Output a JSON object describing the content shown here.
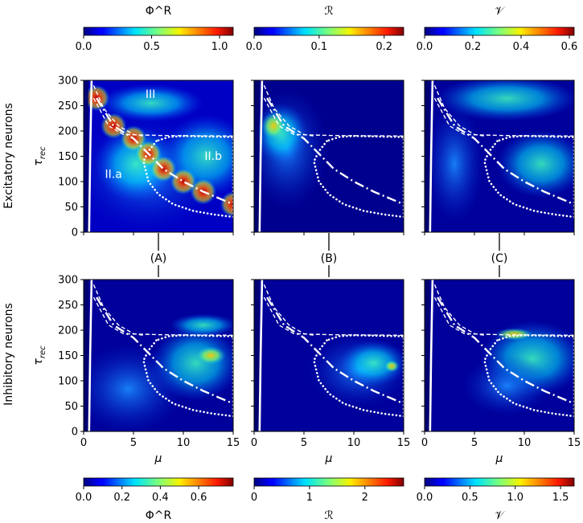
{
  "chart_data": {
    "type": "heatmap",
    "layout": "2 rows x 3 columns of heatmaps with horizontal colorbars above the top row and below the bottom row",
    "row_labels": [
      "Excitatory neurons",
      "Inhibitory neurons"
    ],
    "column_markers": [
      "(A)",
      "(B)",
      "(C)"
    ],
    "xlabel": "μ",
    "ylabel": "τ_rec",
    "xlim": [
      0,
      15
    ],
    "ylim": [
      0,
      300
    ],
    "xticks": [
      0,
      5,
      10,
      15
    ],
    "yticks": [
      0,
      50,
      100,
      150,
      200,
      250,
      300
    ],
    "colormap": "jet",
    "top_colorbars": [
      {
        "label": "Φ^R",
        "range": [
          0,
          1.1
        ],
        "ticks": [
          0.0,
          0.5,
          1.0
        ],
        "tick_labels": [
          "0.0",
          "0.5",
          "1.0"
        ]
      },
      {
        "label": "ℛ",
        "range": [
          0,
          0.23
        ],
        "ticks": [
          0,
          0.1,
          0.2
        ],
        "tick_labels": [
          "0.0",
          "0.1",
          "0.2"
        ]
      },
      {
        "label": "𝒱",
        "range": [
          0,
          0.62
        ],
        "ticks": [
          0,
          0.2,
          0.4,
          0.6
        ],
        "tick_labels": [
          "0.0",
          "0.2",
          "0.4",
          "0.6"
        ]
      }
    ],
    "bottom_colorbars": [
      {
        "label": "Φ^R",
        "range": [
          0,
          0.78
        ],
        "ticks": [
          0,
          0.2,
          0.4,
          0.6
        ],
        "tick_labels": [
          "0.0",
          "0.2",
          "0.4",
          "0.6"
        ]
      },
      {
        "label": "ℛ",
        "range": [
          0,
          2.7
        ],
        "ticks": [
          0,
          1,
          2
        ],
        "tick_labels": [
          "0",
          "1",
          "2"
        ]
      },
      {
        "label": "𝒱",
        "range": [
          0,
          1.65
        ],
        "ticks": [
          0,
          0.5,
          1.0,
          1.5
        ],
        "tick_labels": [
          "0.0",
          "0.5",
          "1.0",
          "1.5"
        ]
      }
    ],
    "region_labels": [
      {
        "text": "III",
        "mu": 6.7,
        "tau": 265
      },
      {
        "text": "II.a",
        "mu": 3.0,
        "tau": 107
      },
      {
        "text": "II.b",
        "mu": 13.0,
        "tau": 143
      }
    ],
    "boundary_lines": [
      {
        "name": "vertical solid line",
        "style": "solid",
        "points": [
          [
            0.55,
            0
          ],
          [
            0.65,
            150
          ],
          [
            0.8,
            300
          ]
        ]
      },
      {
        "name": "upper dashed curve",
        "style": "dashed",
        "points": [
          [
            1.0,
            265
          ],
          [
            2.5,
            210
          ],
          [
            4.0,
            193
          ],
          [
            8.0,
            191
          ],
          [
            15,
            190
          ]
        ]
      },
      {
        "name": "lower dashed curve",
        "style": "dashed",
        "points": [
          [
            1.0,
            290
          ],
          [
            2.0,
            245
          ],
          [
            3.5,
            210
          ],
          [
            5.0,
            193
          ],
          [
            6.0,
            190
          ]
        ]
      },
      {
        "name": "dash-dot curve",
        "style": "dashdot",
        "points": [
          [
            1.3,
            265
          ],
          [
            3.0,
            210
          ],
          [
            5.0,
            185
          ],
          [
            6.5,
            155
          ],
          [
            8.0,
            125
          ],
          [
            10.0,
            100
          ],
          [
            12.0,
            80
          ],
          [
            15.0,
            55
          ]
        ]
      },
      {
        "name": "dotted closed curve",
        "style": "dotted",
        "points": [
          [
            7.3,
            180
          ],
          [
            6.5,
            160
          ],
          [
            6.0,
            140
          ],
          [
            6.5,
            100
          ],
          [
            7.5,
            75
          ],
          [
            9.0,
            55
          ],
          [
            11.0,
            42
          ],
          [
            13.0,
            35
          ],
          [
            15.0,
            30
          ],
          [
            15.0,
            188
          ],
          [
            10.0,
            190
          ],
          [
            8.5,
            188
          ]
        ]
      }
    ]
  }
}
